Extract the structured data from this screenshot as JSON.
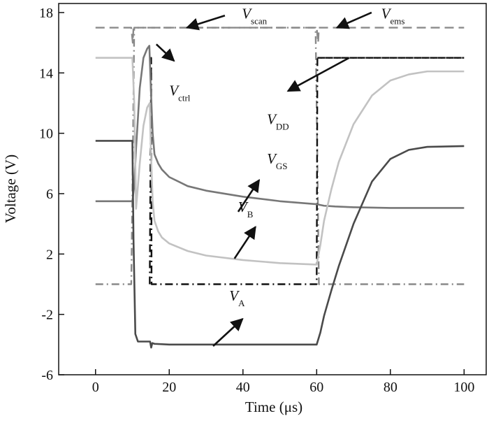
{
  "chart_data": {
    "type": "line",
    "xlabel": "Time (μs)",
    "ylabel": "Voltage (V)",
    "xlim": [
      -10,
      106
    ],
    "ylim": [
      -6,
      18.6
    ],
    "xticks": [
      "0",
      "20",
      "40",
      "60",
      "80",
      "100"
    ],
    "xtick_values": [
      0,
      20,
      40,
      60,
      80,
      100
    ],
    "yticks": [
      "-6",
      "-2",
      "2",
      "6",
      "10",
      "14",
      "18"
    ],
    "ytick_values": [
      -6,
      -2,
      2,
      6,
      10,
      14,
      18
    ],
    "grid": false,
    "series": [
      {
        "name": "Vscan",
        "color": "#8a8a8a",
        "dash": "dashed",
        "x": [
          0,
          9.7,
          10.1,
          10.3,
          60,
          60.4,
          60.6,
          100
        ],
        "y": [
          17,
          17,
          16.0,
          17,
          17,
          16.0,
          17,
          17
        ]
      },
      {
        "name": "Vems",
        "color": "#8a8a8a",
        "dash": "dashdot",
        "x": [
          0,
          9.7,
          10.1,
          10.5,
          59.7,
          60.2,
          60.6,
          100
        ],
        "y": [
          0,
          0,
          8,
          17,
          17,
          8,
          0,
          0
        ]
      },
      {
        "name": "Vctrl",
        "color": "#111111",
        "dash": "dashdot",
        "x": [
          14.7,
          15.1,
          15.2,
          60,
          60.2,
          100
        ],
        "y": [
          0,
          15,
          0,
          0,
          15,
          15
        ]
      },
      {
        "name": "VDD",
        "color": "#111111",
        "dash": "dashdot",
        "x": [
          60.2,
          100
        ],
        "y": [
          15,
          15
        ]
      },
      {
        "name": "VGS",
        "color": "#777777",
        "dash": "solid",
        "x": [
          0,
          10,
          10.5,
          11,
          12,
          13,
          14,
          14.6,
          15,
          15.5,
          16,
          17,
          18,
          20,
          25,
          30,
          40,
          50,
          60,
          62,
          65,
          70,
          80,
          100
        ],
        "y": [
          5.5,
          5.5,
          6.5,
          9,
          13,
          15,
          15.6,
          15.8,
          13,
          10,
          8.6,
          8,
          7.6,
          7.1,
          6.5,
          6.2,
          5.8,
          5.5,
          5.3,
          5.2,
          5.15,
          5.1,
          5.05,
          5.05
        ]
      },
      {
        "name": "VB",
        "color": "#c2c2c2",
        "dash": "solid",
        "x": [
          0,
          10,
          10.5,
          11,
          12,
          13,
          14,
          14.7,
          15,
          15.5,
          16,
          17,
          18,
          20,
          25,
          30,
          40,
          50,
          60,
          61,
          62,
          64,
          66,
          70,
          75,
          80,
          85,
          90,
          100
        ],
        "y": [
          15,
          15,
          12,
          5,
          8,
          10.5,
          11.7,
          12,
          9,
          5.5,
          4.2,
          3.5,
          3.1,
          2.7,
          2.2,
          1.9,
          1.6,
          1.4,
          1.3,
          2.6,
          4.2,
          6.3,
          8.1,
          10.6,
          12.5,
          13.5,
          13.9,
          14.1,
          14.1
        ]
      },
      {
        "name": "VA",
        "color": "#4a4a4a",
        "dash": "solid",
        "x": [
          0,
          10,
          10.3,
          10.8,
          11.5,
          12,
          14.8,
          15.1,
          15.4,
          16,
          20,
          30,
          40,
          50,
          60,
          61,
          62,
          64,
          66,
          70,
          75,
          80,
          85,
          90,
          100
        ],
        "y": [
          9.5,
          9.5,
          3,
          -3.3,
          -3.8,
          -3.8,
          -3.8,
          -4.2,
          -3.9,
          -3.95,
          -4,
          -4,
          -4,
          -4,
          -4,
          -3.2,
          -2.1,
          -0.4,
          1.2,
          4,
          6.8,
          8.3,
          8.9,
          9.1,
          9.15
        ]
      }
    ],
    "annotations": [
      {
        "id": "vscan",
        "main": "V",
        "sub": "scan",
        "label_x": 39.7,
        "label_y": 17.6,
        "arrow_from": [
          35.1,
          17.8
        ],
        "arrow_to": [
          24.8,
          17.0
        ]
      },
      {
        "id": "vems",
        "main": "V",
        "sub": "ems",
        "label_x": 77.5,
        "label_y": 17.6,
        "arrow_from": [
          74.9,
          18.0
        ],
        "arrow_to": [
          65.5,
          17.0
        ]
      },
      {
        "id": "vctrl",
        "main": "V",
        "sub": "ctrl",
        "label_x": 20.0,
        "label_y": 12.5,
        "arrow_from": [
          16.5,
          15.9
        ],
        "arrow_to": [
          21.3,
          14.8
        ]
      },
      {
        "id": "vdd",
        "main": "V",
        "sub": "DD",
        "label_x": 46.5,
        "label_y": 10.6,
        "arrow_from": [
          68.8,
          15.0
        ],
        "arrow_to": [
          52.2,
          12.8
        ]
      },
      {
        "id": "vgs",
        "main": "V",
        "sub": "GS",
        "label_x": 46.5,
        "label_y": 8.0,
        "arrow_from": [
          38.7,
          4.8
        ],
        "arrow_to": [
          44.4,
          6.9
        ]
      },
      {
        "id": "vb",
        "main": "V",
        "sub": "B",
        "label_x": 38.7,
        "label_y": 4.8,
        "arrow_from": [
          37.7,
          1.7
        ],
        "arrow_to": [
          43.4,
          3.8
        ]
      },
      {
        "id": "va",
        "main": "V",
        "sub": "A",
        "label_x": 36.3,
        "label_y": -1.1,
        "arrow_from": [
          31.9,
          -4.1
        ],
        "arrow_to": [
          39.9,
          -2.3
        ]
      }
    ]
  }
}
